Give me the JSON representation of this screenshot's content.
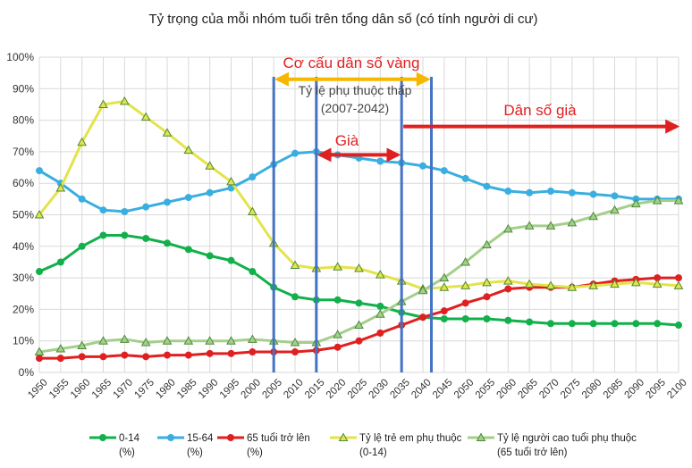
{
  "chart_data": {
    "type": "line",
    "title": "Tỷ trọng của mỗi nhóm tuổi trên tổng dân số (có tính người di cư)",
    "x": [
      1950,
      1955,
      1960,
      1965,
      1970,
      1975,
      1980,
      1985,
      1990,
      1995,
      2000,
      2005,
      2010,
      2015,
      2020,
      2025,
      2030,
      2035,
      2040,
      2045,
      2050,
      2055,
      2060,
      2065,
      2070,
      2075,
      2080,
      2085,
      2090,
      2095,
      2100
    ],
    "x_tick_labels": [
      "1950",
      "1955",
      "1960",
      "1965",
      "1970",
      "1975",
      "1980",
      "1985",
      "1990",
      "1995",
      "2000",
      "2005",
      "2010",
      "2015",
      "2020",
      "2025",
      "2030",
      "2035",
      "2040",
      "2045",
      "2050",
      "2055",
      "2060",
      "2065",
      "2070",
      "2075",
      "2080",
      "2085",
      "2090",
      "2095",
      "2100"
    ],
    "y_tick_labels": [
      "0%",
      "10%",
      "20%",
      "30%",
      "40%",
      "50%",
      "60%",
      "70%",
      "80%",
      "90%",
      "100%"
    ],
    "ylim": [
      0,
      100
    ],
    "y_unit": "%",
    "grid": "horizontal and vertical",
    "legend_position": "bottom",
    "series": [
      {
        "name": "0-14",
        "name_line2": "(%)",
        "color": "#12b04a",
        "marker": "circle",
        "values": [
          32,
          35,
          40,
          43.5,
          43.5,
          42.5,
          41,
          39,
          37,
          35.5,
          32,
          27,
          24,
          23,
          23,
          22,
          21,
          19,
          17.5,
          17,
          17,
          17,
          16.5,
          16,
          15.5,
          15.5,
          15.5,
          15.5,
          15.5,
          15.5,
          15
        ]
      },
      {
        "name": "15-64",
        "name_line2": "(%)",
        "color": "#3aaee0",
        "marker": "circle",
        "values": [
          64,
          60,
          55,
          51.5,
          51,
          52.5,
          54,
          55.5,
          57,
          58.5,
          62,
          66,
          69.5,
          70,
          69,
          68,
          67,
          66.5,
          65.5,
          64,
          61.5,
          59,
          57.5,
          57,
          57.5,
          57,
          56.5,
          56,
          55,
          55,
          55
        ]
      },
      {
        "name": "65 tuổi trở lên",
        "name_line2": "(%)",
        "color": "#e02020",
        "marker": "circle",
        "values": [
          4.5,
          4.5,
          5,
          5,
          5.5,
          5,
          5.5,
          5.5,
          6,
          6,
          6.5,
          6.5,
          6.5,
          7,
          8,
          10,
          12.5,
          15,
          17.5,
          19.5,
          22,
          24,
          26.5,
          27,
          27,
          27,
          28,
          29,
          29.5,
          30,
          30
        ]
      },
      {
        "name": "Tỷ lệ trẻ em phụ thuộc",
        "name_line2": "(0-14)",
        "color": "#e3e34a",
        "marker": "triangle",
        "values": [
          50,
          58.5,
          73,
          85,
          86,
          81,
          76,
          70.5,
          65.5,
          60.5,
          51,
          41,
          34,
          33,
          33.5,
          33,
          31,
          29,
          26.5,
          27,
          27.5,
          28.5,
          29,
          28,
          27.5,
          27,
          27.5,
          28,
          28.5,
          28,
          27.5
        ]
      },
      {
        "name": "Tỷ lệ người cao tuổi phụ thuộc",
        "name_line2": "(65 tuổi trở lên)",
        "color": "#a3cf8a",
        "marker": "triangle",
        "values": [
          6.5,
          7.5,
          8.5,
          10,
          10.5,
          9.5,
          10,
          10,
          10,
          10,
          10.5,
          10,
          9.5,
          9.5,
          12,
          15,
          18.5,
          22.5,
          26,
          30,
          35,
          40.5,
          45.5,
          46.5,
          46.5,
          47.5,
          49.5,
          51.5,
          53.5,
          54.5,
          54.5
        ]
      }
    ],
    "vertical_markers": [
      2005,
      2015,
      2035,
      2042
    ],
    "annotations": [
      {
        "text": "Cơ cấu dân số vàng",
        "style": "red",
        "arrow": "double",
        "arrow_color": "#f5b800",
        "from_x": 2005,
        "to_x": 2042,
        "y": 93
      },
      {
        "text": "Tỷ lệ phụ thuộc thấp",
        "style": "gray"
      },
      {
        "text": "(2007-2042)",
        "style": "gray"
      },
      {
        "text": "Già",
        "style": "red",
        "arrow": "double",
        "arrow_color": "#e02020",
        "from_x": 2015,
        "to_x": 2035,
        "y": 69
      },
      {
        "text": "Dân số già",
        "style": "red",
        "arrow": "right",
        "arrow_color": "#e02020",
        "from_x": 2035,
        "to_x": 2100,
        "y": 78
      }
    ]
  }
}
